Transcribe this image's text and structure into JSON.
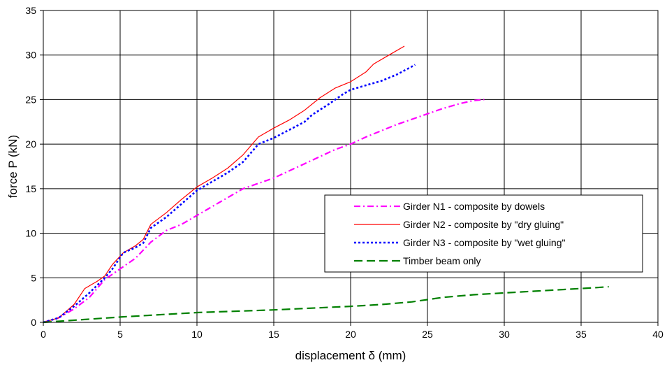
{
  "chart_data": {
    "type": "line",
    "title": "",
    "xlabel": "displacement δ (mm)",
    "ylabel": "force P (kN)",
    "xlim": [
      0,
      40
    ],
    "ylim": [
      0,
      35
    ],
    "xticks": [
      0,
      5,
      10,
      15,
      20,
      25,
      30,
      35,
      40
    ],
    "yticks": [
      0,
      5,
      10,
      15,
      20,
      25,
      30,
      35
    ],
    "grid": true,
    "legend_position": "lower-right",
    "series": [
      {
        "name": "Girder N1 - composite by dowels",
        "color": "#ff00ff",
        "dash": "dash-dot",
        "points": [
          [
            0,
            0
          ],
          [
            1,
            0.5
          ],
          [
            2,
            1.5
          ],
          [
            3,
            2.8
          ],
          [
            4,
            4.8
          ],
          [
            5,
            6
          ],
          [
            6,
            7.2
          ],
          [
            7,
            9
          ],
          [
            8,
            10.3
          ],
          [
            9,
            11
          ],
          [
            10,
            12
          ],
          [
            11,
            13
          ],
          [
            12,
            14
          ],
          [
            13,
            15
          ],
          [
            14,
            15.6
          ],
          [
            15,
            16.2
          ],
          [
            16,
            17
          ],
          [
            17,
            17.8
          ],
          [
            18,
            18.6
          ],
          [
            19,
            19.4
          ],
          [
            20,
            20
          ],
          [
            21,
            20.8
          ],
          [
            22,
            21.5
          ],
          [
            23,
            22.2
          ],
          [
            24,
            22.8
          ],
          [
            25,
            23.4
          ],
          [
            26,
            24
          ],
          [
            27,
            24.5
          ],
          [
            28,
            24.9
          ],
          [
            28.7,
            25
          ]
        ]
      },
      {
        "name": "Girder N2 - composite by  \"dry gluing\"",
        "color": "#ff0000",
        "dash": "solid",
        "points": [
          [
            0,
            0
          ],
          [
            1,
            0.5
          ],
          [
            2,
            2
          ],
          [
            2.7,
            3.8
          ],
          [
            3.5,
            4.6
          ],
          [
            4,
            5.2
          ],
          [
            4.5,
            6.5
          ],
          [
            5.2,
            7.8
          ],
          [
            6,
            8.6
          ],
          [
            6.5,
            9.3
          ],
          [
            7,
            11
          ],
          [
            8,
            12.3
          ],
          [
            9,
            13.8
          ],
          [
            10,
            15.2
          ],
          [
            11,
            16.2
          ],
          [
            12,
            17.3
          ],
          [
            13,
            18.8
          ],
          [
            14,
            20.8
          ],
          [
            15,
            21.8
          ],
          [
            16,
            22.7
          ],
          [
            17,
            23.8
          ],
          [
            18,
            25.2
          ],
          [
            19,
            26.3
          ],
          [
            20,
            27
          ],
          [
            21,
            28.1
          ],
          [
            21.5,
            29
          ],
          [
            22.5,
            30
          ],
          [
            23.5,
            31
          ]
        ]
      },
      {
        "name": "Girder N3 - composite by \"wet gluing\"",
        "color": "#0000ff",
        "dash": "dotted",
        "points": [
          [
            0,
            0
          ],
          [
            1,
            0.5
          ],
          [
            2,
            1.8
          ],
          [
            3,
            3.3
          ],
          [
            4,
            5
          ],
          [
            4.5,
            6
          ],
          [
            5.2,
            7.8
          ],
          [
            6,
            8.4
          ],
          [
            6.5,
            8.9
          ],
          [
            7,
            10.6
          ],
          [
            8,
            11.8
          ],
          [
            9,
            13.3
          ],
          [
            10,
            14.8
          ],
          [
            11,
            15.8
          ],
          [
            12,
            16.8
          ],
          [
            13,
            18
          ],
          [
            13.5,
            19
          ],
          [
            14,
            20
          ],
          [
            15,
            20.7
          ],
          [
            16,
            21.6
          ],
          [
            17,
            22.5
          ],
          [
            17.5,
            23.3
          ],
          [
            18.5,
            24.4
          ],
          [
            19.5,
            25.6
          ],
          [
            20,
            26.1
          ],
          [
            21,
            26.6
          ],
          [
            22,
            27.1
          ],
          [
            23,
            27.8
          ],
          [
            24.2,
            28.9
          ]
        ]
      },
      {
        "name": "Timber beam only",
        "color": "#008000",
        "dash": "dashed",
        "points": [
          [
            0,
            0
          ],
          [
            5,
            0.6
          ],
          [
            10,
            1.1
          ],
          [
            15,
            1.4
          ],
          [
            20,
            1.8
          ],
          [
            22,
            2
          ],
          [
            24,
            2.3
          ],
          [
            26,
            2.8
          ],
          [
            28,
            3.1
          ],
          [
            30,
            3.3
          ],
          [
            32,
            3.5
          ],
          [
            34,
            3.7
          ],
          [
            36,
            3.9
          ],
          [
            36.8,
            4
          ]
        ]
      }
    ]
  }
}
